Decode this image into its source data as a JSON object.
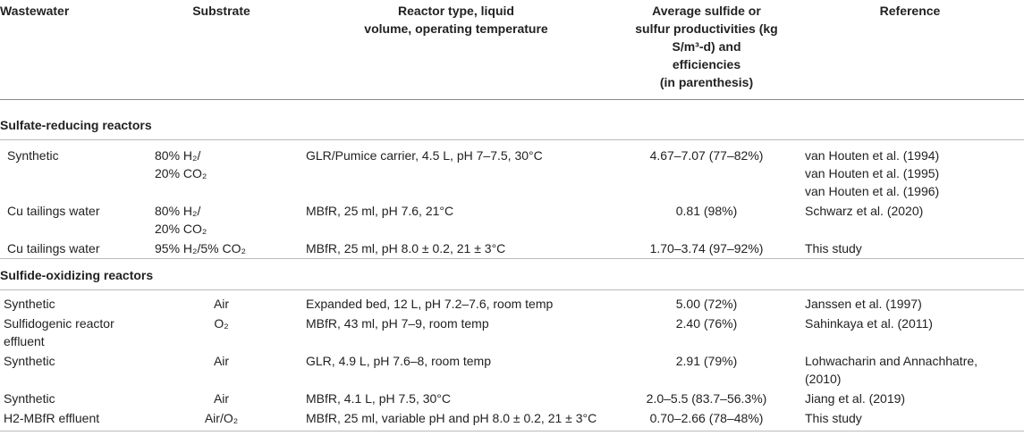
{
  "table": {
    "header": [
      "Wastewater",
      "Substrate",
      "Reactor type, liquid\nvolume, operating temperature",
      "Average sulfide or\nsulfur productivities (kg\nS/m³-d) and\nefficiencies\n(in parenthesis)",
      "Reference"
    ],
    "sections": [
      {
        "title": "Sulfate-reducing reactors",
        "rows": [
          [
            "Synthetic",
            "80% H₂/\n20% CO₂",
            "GLR/Pumice carrier, 4.5 L, pH 7–7.5, 30°C",
            "4.67–7.07 (77–82%)",
            "van Houten et al. (1994)\nvan Houten et al. (1995)\nvan Houten et al. (1996)"
          ],
          [
            "Cu tailings water",
            "80% H₂/\n20% CO₂",
            "MBfR, 25 ml, pH 7.6, 21°C",
            "0.81 (98%)",
            "Schwarz et al. (2020)"
          ],
          [
            "Cu tailings water",
            "95% H₂/5% CO₂",
            "MBfR, 25 ml, pH 8.0 ± 0.2, 21 ± 3°C",
            "1.70–3.74 (97–92%)",
            "This study"
          ]
        ]
      },
      {
        "title": "Sulfide-oxidizing reactors",
        "rows": [
          [
            "Synthetic",
            "Air",
            "Expanded bed, 12 L, pH 7.2–7.6, room temp",
            "5.00 (72%)",
            "Janssen et al. (1997)"
          ],
          [
            "Sulfidogenic reactor\neffluent",
            "O₂",
            "MBfR, 43 ml, pH 7–9, room temp",
            "2.40 (76%)",
            "Sahinkaya et al. (2011)"
          ],
          [
            "Synthetic",
            "Air",
            "GLR, 4.9 L, pH 7.6–8, room temp",
            "2.91 (79%)",
            "Lohwacharin and Annachhatre,\n(2010)"
          ],
          [
            "Synthetic",
            "Air",
            "MBfR, 4.1 L, pH 7.5, 30°C",
            "2.0–5.5 (83.7–56.3%)",
            "Jiang et al. (2019)"
          ],
          [
            "H2-MBfR effluent",
            "Air/O₂",
            "MBfR, 25 ml, variable pH and pH 8.0 ± 0.2, 21 ± 3°C",
            "0.70–2.66 (78–48%)",
            "This study"
          ]
        ]
      }
    ]
  }
}
